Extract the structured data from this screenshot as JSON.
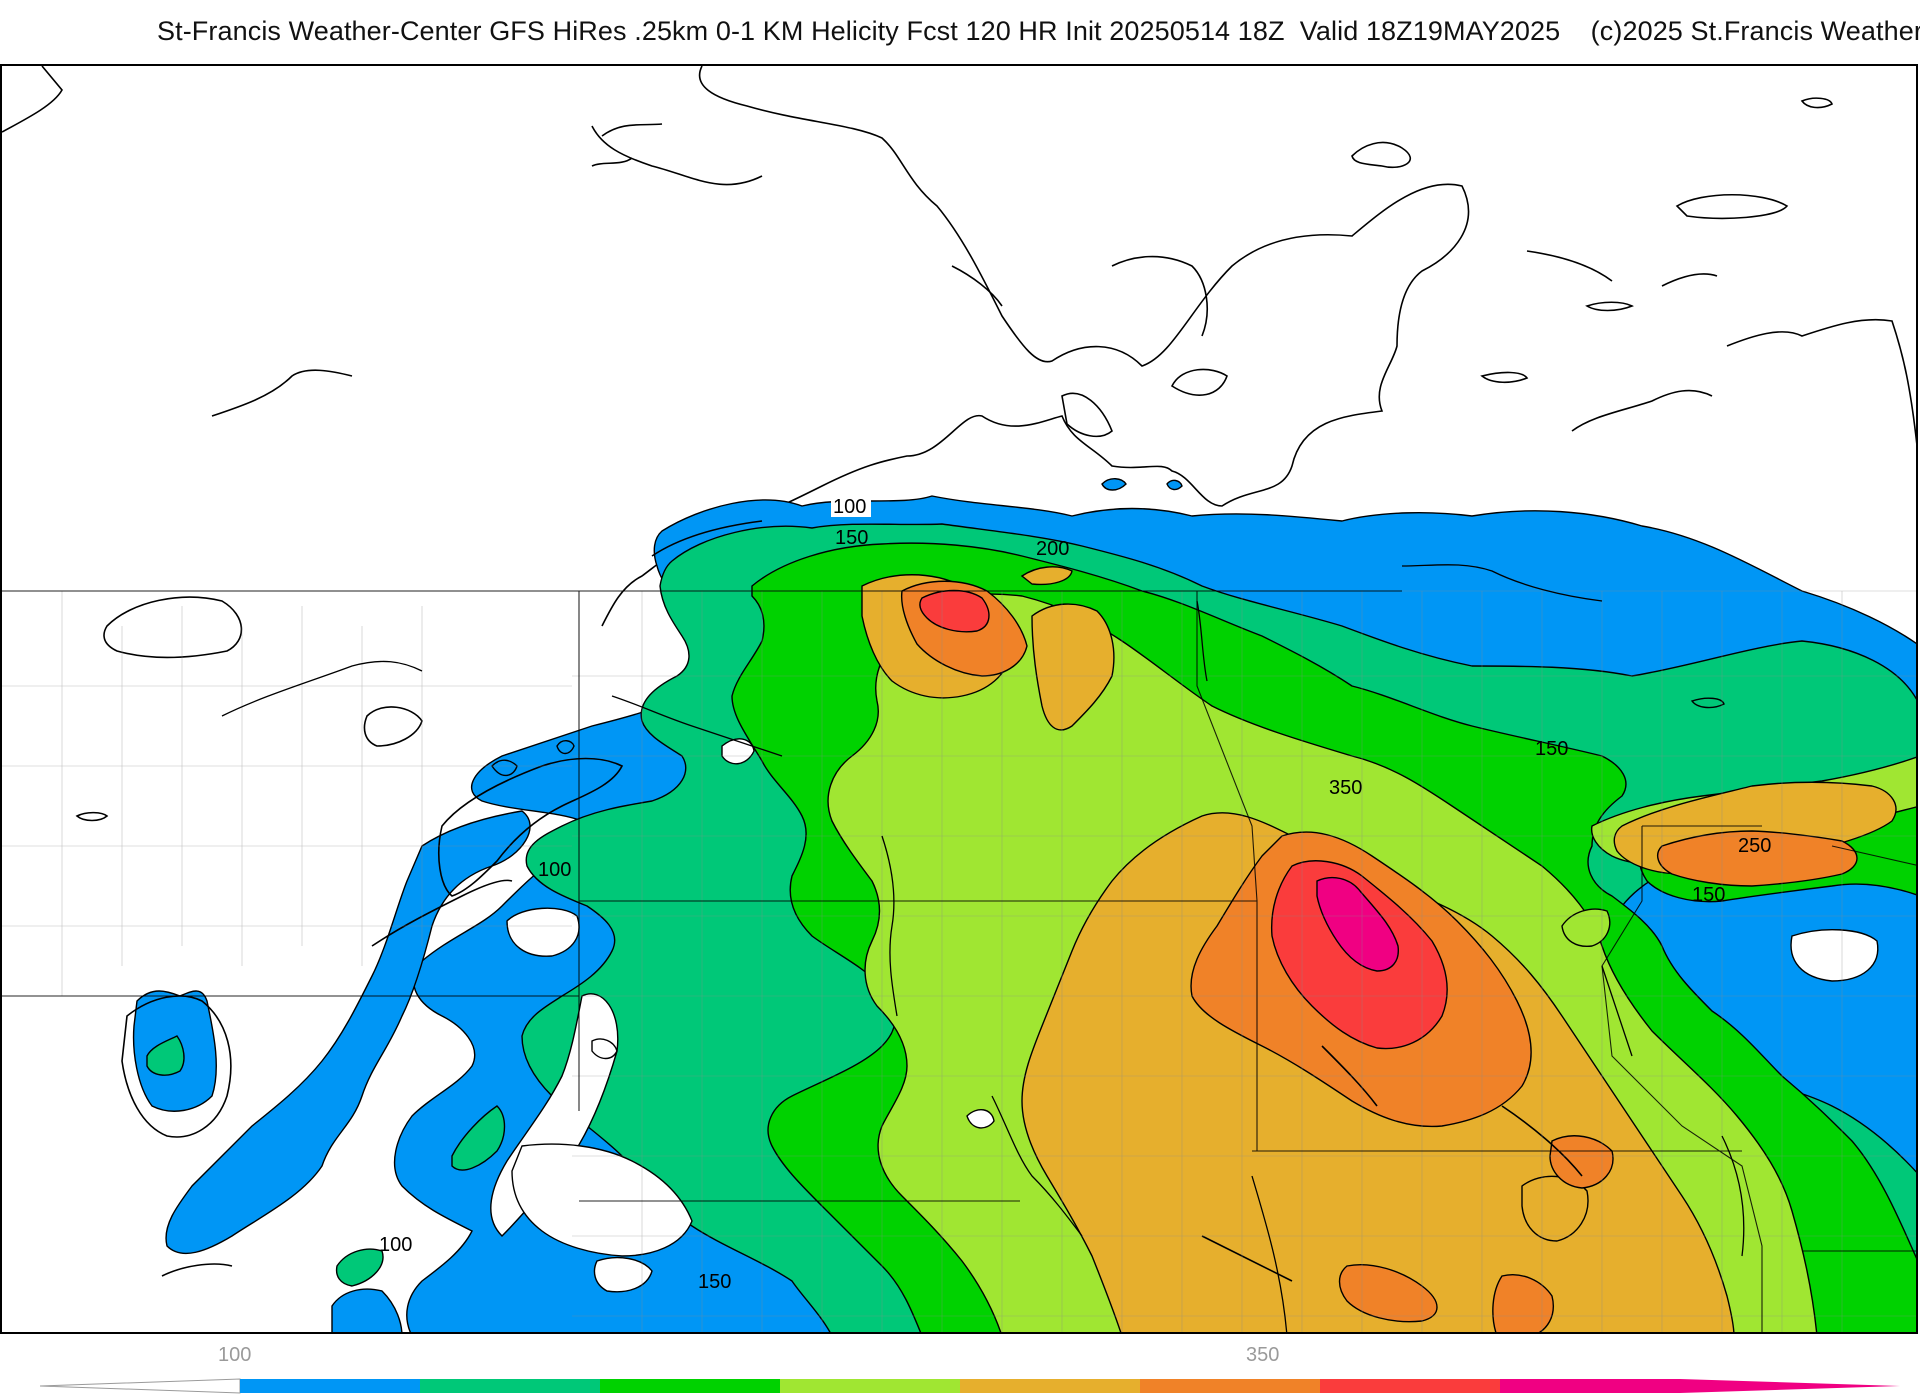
{
  "header": {
    "title": "St-Francis Weather-Center GFS HiRes .25km 0-1 KM Helicity Fcst 120 HR Init 20250514 18Z  Valid 18Z19MAY2025    (c)2025 St.Francis Weather"
  },
  "map": {
    "field": "0-1 KM Helicity",
    "contour_labels": {
      "l100_north": "100",
      "l150_north": "150",
      "l200": "200",
      "l350": "350",
      "l150_east": "150",
      "l250": "250",
      "l150_se": "150",
      "l100_west": "100",
      "l100_sw": "100",
      "l150_south": "150"
    }
  },
  "legend": {
    "tick_low": "100",
    "tick_high": "350",
    "bins": [
      {
        "color": "#0096f5"
      },
      {
        "color": "#00c878"
      },
      {
        "color": "#00d200"
      },
      {
        "color": "#a0e632"
      },
      {
        "color": "#e6af2d"
      },
      {
        "color": "#f08228"
      },
      {
        "color": "#fa3c3c"
      },
      {
        "color": "#f00082"
      }
    ]
  }
}
